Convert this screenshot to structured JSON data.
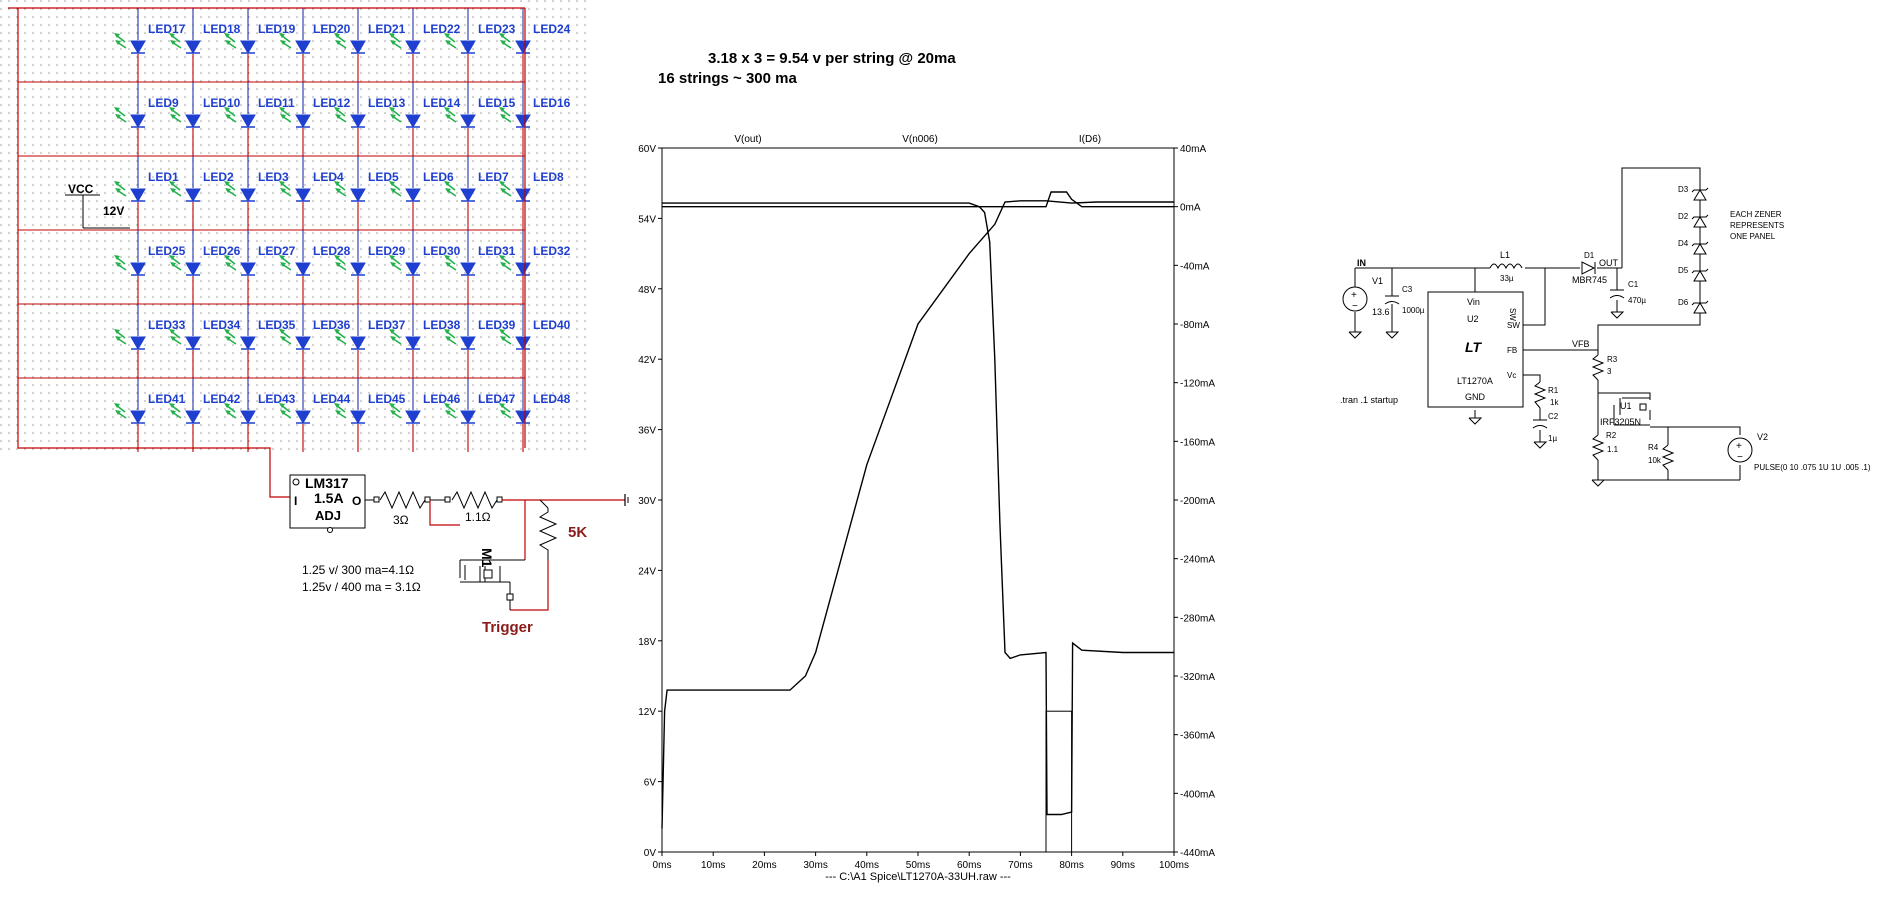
{
  "led_matrix": {
    "rows": [
      [
        "LED17",
        "LED18",
        "LED19",
        "LED20",
        "LED21",
        "LED22",
        "LED23",
        "LED24"
      ],
      [
        "LED9",
        "LED10",
        "LED11",
        "LED12",
        "LED13",
        "LED14",
        "LED15",
        "LED16"
      ],
      [
        "LED1",
        "LED2",
        "LED3",
        "LED4",
        "LED5",
        "LED6",
        "LED7",
        "LED8"
      ],
      [
        "LED25",
        "LED26",
        "LED27",
        "LED28",
        "LED29",
        "LED30",
        "LED31",
        "LED32"
      ],
      [
        "LED33",
        "LED34",
        "LED35",
        "LED36",
        "LED37",
        "LED38",
        "LED39",
        "LED40"
      ],
      [
        "LED41",
        "LED42",
        "LED43",
        "LED44",
        "LED45",
        "LED46",
        "LED47",
        "LED48"
      ]
    ],
    "vcc_label": "VCC",
    "vcc_value": "12V",
    "regulator_name": "LM317",
    "regulator_rating": "1.5A",
    "regulator_adj": "ADJ",
    "pin_in": "I",
    "pin_out": "O",
    "r1_value": "3Ω",
    "r2_value": "1.1Ω",
    "r_pot_value": "5K",
    "mosfet_label": "M1",
    "note_line1": "1.25 v/ 300 ma=4.1Ω",
    "note_line2": "1.25v / 400 ma = 3.1Ω",
    "trigger_label": "Trigger"
  },
  "header_note": {
    "line1": "3.18 x 3 = 9.54 v per string @ 20ma",
    "line2": "16 strings ~ 300 ma"
  },
  "chart_data": {
    "type": "line",
    "file_label": "---  C:\\A1 Spice\\LT1270A-33UH.raw  ---",
    "x_ticks": [
      "0ms",
      "10ms",
      "20ms",
      "30ms",
      "40ms",
      "50ms",
      "60ms",
      "70ms",
      "80ms",
      "90ms",
      "100ms"
    ],
    "xlim": [
      0,
      100
    ],
    "y_left_ticks": [
      "0V",
      "6V",
      "12V",
      "18V",
      "24V",
      "30V",
      "36V",
      "42V",
      "48V",
      "54V",
      "60V"
    ],
    "ylim_left": [
      0,
      60
    ],
    "y_right_ticks": [
      "-440mA",
      "-400mA",
      "-360mA",
      "-320mA",
      "-280mA",
      "-240mA",
      "-200mA",
      "-160mA",
      "-120mA",
      "-80mA",
      "-40mA",
      "0mA",
      "40mA"
    ],
    "ylim_right": [
      -440,
      40
    ],
    "series": [
      {
        "name": "V(out)",
        "axis": "left",
        "x": [
          0,
          0.5,
          1,
          25,
          28,
          30,
          40,
          50,
          60,
          65,
          67,
          70,
          75,
          80,
          85,
          90,
          100
        ],
        "y": [
          2,
          12,
          13.8,
          13.8,
          15,
          17,
          33,
          45,
          51,
          53.5,
          55.4,
          55.5,
          55.5,
          55.3,
          55.4,
          55.4,
          55.4
        ]
      },
      {
        "name": "V(n006)",
        "axis": "left",
        "x": [
          0,
          60,
          62,
          63,
          64,
          65,
          66,
          67,
          68,
          70,
          75,
          75.2,
          78,
          80,
          80.2,
          82,
          90,
          100
        ],
        "y": [
          55.3,
          55.3,
          55,
          54.5,
          52,
          42,
          28,
          17,
          16.5,
          16.8,
          17,
          3.2,
          3.2,
          3.4,
          17.8,
          17.2,
          17,
          17
        ]
      },
      {
        "name": "I(D6)",
        "axis": "right",
        "x": [
          0,
          68,
          75,
          76,
          79,
          80,
          82,
          100
        ],
        "y": [
          0,
          0,
          0,
          10,
          10,
          5,
          0,
          0
        ]
      }
    ]
  },
  "lt1270a_schematic": {
    "label_in": "IN",
    "v1_name": "V1",
    "v1_value": "13.6",
    "c3_name": "C3",
    "c3_value": "1000µ",
    "l1_name": "L1",
    "l1_value": "33µ",
    "d1_name": "D1",
    "d1_value": "MBR745",
    "label_out": "OUT",
    "c1_name": "C1",
    "c1_value": "470µ",
    "zeners": [
      "D3",
      "D2",
      "D4",
      "D5",
      "D6"
    ],
    "zener_note": [
      "EACH ZENER",
      "REPRESENTS",
      "ONE PANEL"
    ],
    "ic_vin": "Vin",
    "ic_name": "U2",
    "ic_sw_top": "SW",
    "ic_sw": "SW",
    "ic_fb": "FB",
    "ic_vc": "Vc",
    "ic_part": "LT1270A",
    "ic_gnd": "GND",
    "vfb_label": "VFB",
    "r3_name": "R3",
    "r3_value": "3",
    "r1_name": "R1",
    "r1_value": "1k",
    "c2_name": "C2",
    "c2_value": "1µ",
    "u1_name": "U1",
    "u1_part": "IRF3205N",
    "r2_name": "R2",
    "r2_value": "1.1",
    "r4_name": "R4",
    "r4_value": "10k",
    "v2_name": "V2",
    "v2_value": "PULSE(0 10 .075 1U 1U .005 .1)",
    "tran_cmd": ".tran .1 startup"
  }
}
